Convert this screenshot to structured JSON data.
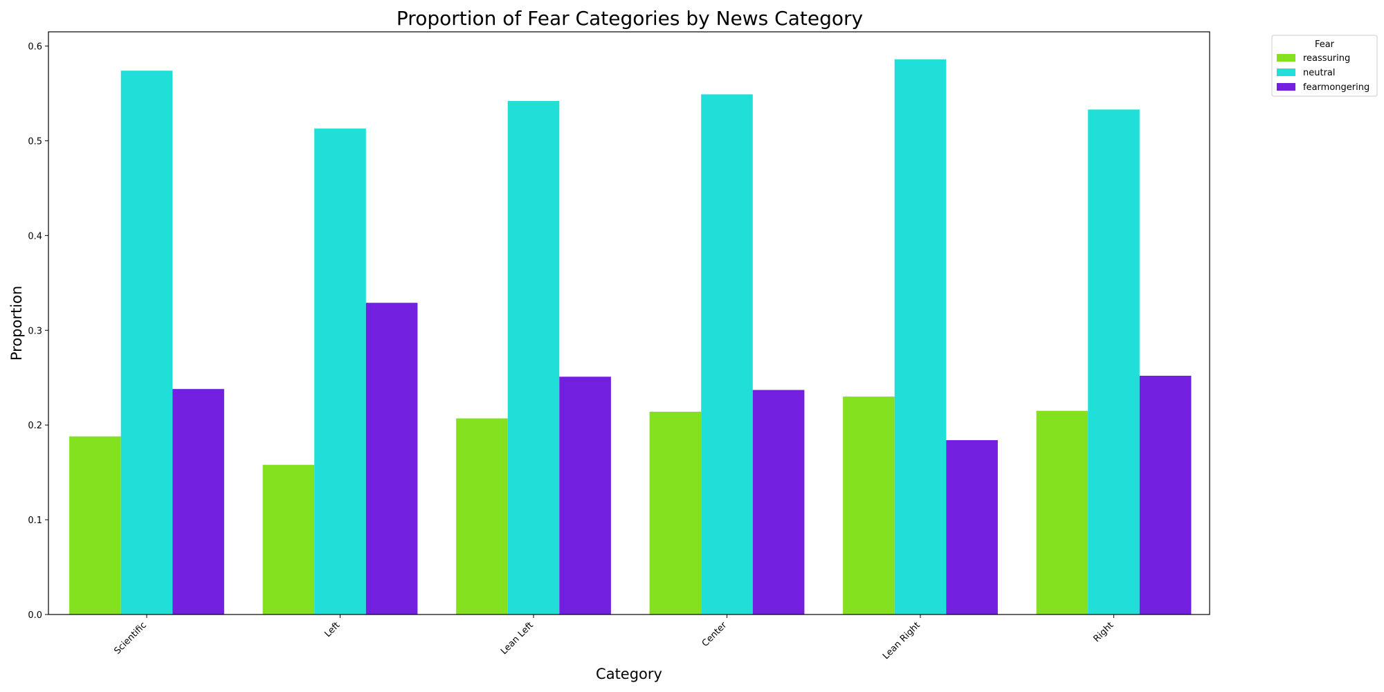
{
  "chart_data": {
    "type": "bar",
    "title": "Proportion of Fear Categories by News Category",
    "xlabel": "Category",
    "ylabel": "Proportion",
    "categories": [
      "Scientific",
      "Left",
      "Lean Left",
      "Center",
      "Lean Right",
      "Right"
    ],
    "series": [
      {
        "name": "reassuring",
        "color": "#84e11f",
        "values": [
          0.188,
          0.158,
          0.207,
          0.214,
          0.23,
          0.215
        ]
      },
      {
        "name": "neutral",
        "color": "#1fdfd8",
        "values": [
          0.574,
          0.513,
          0.542,
          0.549,
          0.586,
          0.533
        ]
      },
      {
        "name": "fearmongering",
        "color": "#721fe0",
        "values": [
          0.238,
          0.329,
          0.251,
          0.237,
          0.184,
          0.252
        ]
      }
    ],
    "ylim": [
      0,
      0.615
    ],
    "yticks": [
      0.0,
      0.1,
      0.2,
      0.3,
      0.4,
      0.5,
      0.6
    ],
    "ytick_labels": [
      "0.0",
      "0.1",
      "0.2",
      "0.3",
      "0.4",
      "0.5",
      "0.6"
    ],
    "grid": false,
    "legend": {
      "title": "Fear",
      "placement": "outside-top-right"
    }
  }
}
